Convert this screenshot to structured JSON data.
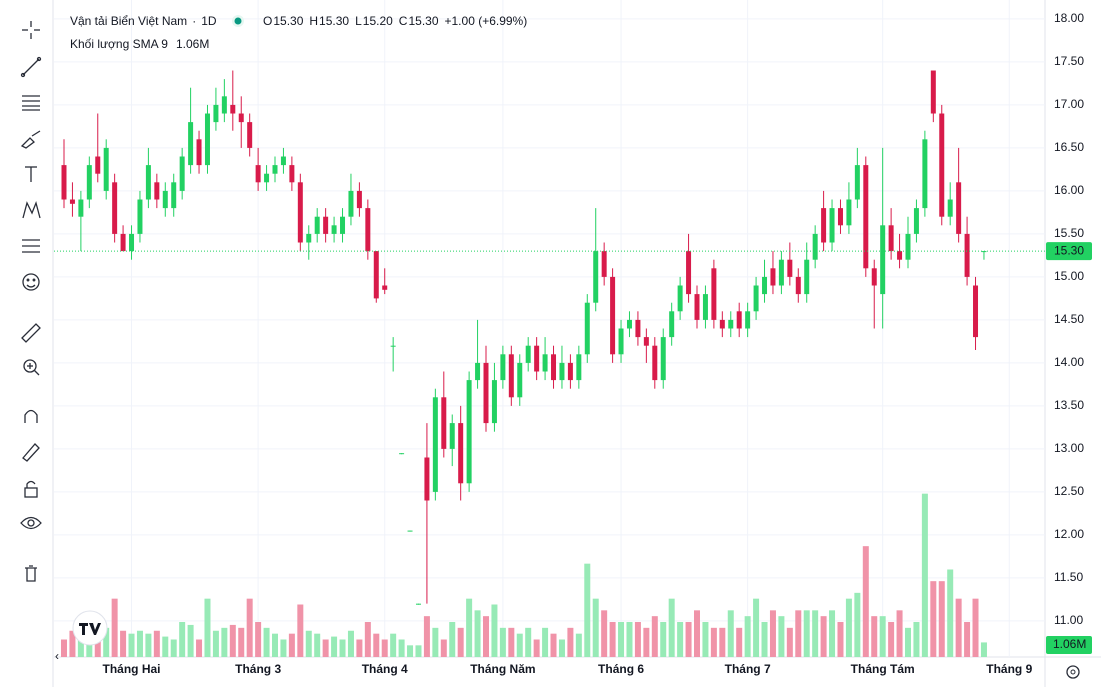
{
  "chart_data": {
    "type": "candlestick",
    "title": "Vận tải Biển Việt Nam",
    "interval": "1D",
    "ohlc_legend": [
      {
        "key": "O",
        "value": "15.30"
      },
      {
        "key": "H",
        "value": "15.30"
      },
      {
        "key": "L",
        "value": "15.20"
      },
      {
        "key": "C",
        "value": "15.30"
      }
    ],
    "change": "+1.00 (+6.99%)",
    "volume_title": "Khối lượng SMA 9",
    "volume_label": "1.06M",
    "up_color": "#22d162",
    "down_color": "#d81b4a",
    "up_volume_color": "#97eab6",
    "down_volume_color": "#f093a8",
    "ylim": [
      10.58,
      18.22
    ],
    "yticks": [
      {
        "value": 11,
        "label": "11.00"
      },
      {
        "value": 11.5,
        "label": "11.50"
      },
      {
        "value": 12,
        "label": "12.00"
      },
      {
        "value": 12.5,
        "label": "12.50"
      },
      {
        "value": 13,
        "label": "13.00"
      },
      {
        "value": 13.5,
        "label": "13.50"
      },
      {
        "value": 14,
        "label": "14.00"
      },
      {
        "value": 14.5,
        "label": "14.50"
      },
      {
        "value": 15,
        "label": "15.00"
      },
      {
        "value": 15.5,
        "label": "15.50"
      },
      {
        "value": 16,
        "label": "16.00"
      },
      {
        "value": 16.5,
        "label": "16.50"
      },
      {
        "value": 17,
        "label": "17.00"
      },
      {
        "value": 17.5,
        "label": "17.50"
      },
      {
        "value": 18,
        "label": "18.00"
      }
    ],
    "volume_ylim": [
      0,
      3
    ],
    "grid": true,
    "categories": [
      null,
      null,
      null,
      null,
      null,
      null,
      null,
      null,
      "Tháng Hai",
      null,
      null,
      null,
      null,
      null,
      null,
      null,
      null,
      null,
      null,
      null,
      null,
      null,
      null,
      "Tháng 3",
      null,
      null,
      null,
      null,
      null,
      null,
      null,
      null,
      null,
      null,
      null,
      null,
      null,
      null,
      "Tháng 4",
      null,
      null,
      null,
      null,
      null,
      null,
      null,
      null,
      null,
      null,
      null,
      null,
      null,
      "Tháng Năm",
      null,
      null,
      null,
      null,
      null,
      null,
      null,
      null,
      null,
      null,
      null,
      null,
      null,
      "Tháng 6",
      null,
      null,
      null,
      null,
      null,
      null,
      null,
      null,
      null,
      null,
      null,
      null,
      null,
      null,
      "Tháng 7",
      null,
      null,
      null,
      null,
      null,
      null,
      null,
      null,
      null,
      null,
      null,
      null,
      null,
      null,
      null,
      "Tháng Tám",
      null,
      null,
      null,
      null,
      null,
      null,
      null,
      null,
      null,
      null,
      null,
      null,
      null,
      null,
      "Tháng 9"
    ],
    "open": [
      16.3,
      15.9,
      15.7,
      15.9,
      16.4,
      16.0,
      16.1,
      15.5,
      15.3,
      15.5,
      15.9,
      16.1,
      15.8,
      15.8,
      16.0,
      16.3,
      16.6,
      16.3,
      16.8,
      16.9,
      17.0,
      16.9,
      16.8,
      16.3,
      16.1,
      16.2,
      16.3,
      16.3,
      16.1,
      15.4,
      15.5,
      15.7,
      15.5,
      15.5,
      15.7,
      16.0,
      15.8,
      15.3,
      14.9,
      14.2,
      12.95,
      12.05,
      11.2,
      12.9,
      12.5,
      13.6,
      13.0,
      13.3,
      12.6,
      13.8,
      14.0,
      13.3,
      13.8,
      14.1,
      13.6,
      14.0,
      14.2,
      13.9,
      14.1,
      13.8,
      14.0,
      13.8,
      14.1,
      14.7,
      15.3,
      15.0,
      14.1,
      14.4,
      14.5,
      14.3,
      14.2,
      13.8,
      14.3,
      14.6,
      15.3,
      14.8,
      14.5,
      15.1,
      14.5,
      14.4,
      14.6,
      14.4,
      14.6,
      14.8,
      15.1,
      14.9,
      15.2,
      15.0,
      14.8,
      15.2,
      15.8,
      15.4,
      15.8,
      15.6,
      15.9,
      16.3,
      15.1,
      14.8,
      15.6,
      15.3,
      15.2,
      15.5,
      15.8,
      17.4,
      16.9,
      15.7,
      16.1,
      15.5,
      14.9,
      15.3,
      null,
      null,
      null
    ],
    "high": [
      16.6,
      16.1,
      16.0,
      16.4,
      16.9,
      16.6,
      16.2,
      15.6,
      15.6,
      16.0,
      16.5,
      16.2,
      16.1,
      16.2,
      16.5,
      17.2,
      16.7,
      17.0,
      17.2,
      17.3,
      17.4,
      17.1,
      16.9,
      16.5,
      16.3,
      16.4,
      16.5,
      16.4,
      16.2,
      15.6,
      15.8,
      15.8,
      15.7,
      15.8,
      16.2,
      16.1,
      15.9,
      15.3,
      15.1,
      14.3,
      12.95,
      12.05,
      11.2,
      13.3,
      13.7,
      13.9,
      13.4,
      13.5,
      13.9,
      14.5,
      14.2,
      14.0,
      14.2,
      14.2,
      14.1,
      14.3,
      14.3,
      14.3,
      14.2,
      14.2,
      14.1,
      14.2,
      14.8,
      15.8,
      15.4,
      15.1,
      14.5,
      14.6,
      14.6,
      14.4,
      14.3,
      14.4,
      14.7,
      15.0,
      15.5,
      14.9,
      14.9,
      15.2,
      14.6,
      14.6,
      14.7,
      14.7,
      15.0,
      15.2,
      15.3,
      15.3,
      15.4,
      15.1,
      15.4,
      15.6,
      16.0,
      15.9,
      15.9,
      16.1,
      16.5,
      16.4,
      15.2,
      16.5,
      15.8,
      15.5,
      15.7,
      15.9,
      16.7,
      17.4,
      17.0,
      16.1,
      16.5,
      15.7,
      15.0,
      15.3,
      null,
      null,
      null
    ],
    "low": [
      15.8,
      15.7,
      15.3,
      15.8,
      16.1,
      15.9,
      15.4,
      15.3,
      15.2,
      15.4,
      15.8,
      15.8,
      15.7,
      15.7,
      15.9,
      16.2,
      16.2,
      16.2,
      16.7,
      16.8,
      16.7,
      16.5,
      16.4,
      16.0,
      16.0,
      16.1,
      16.2,
      16.0,
      15.3,
      15.2,
      15.4,
      15.4,
      15.4,
      15.4,
      15.6,
      15.7,
      15.2,
      14.7,
      14.8,
      13.9,
      12.95,
      12.05,
      11.2,
      11.2,
      12.4,
      12.9,
      12.8,
      12.4,
      12.5,
      13.7,
      13.2,
      13.2,
      13.7,
      13.5,
      13.5,
      13.9,
      13.8,
      13.8,
      13.7,
      13.7,
      13.7,
      13.7,
      14.0,
      14.6,
      14.9,
      14.0,
      14.0,
      14.3,
      14.2,
      14.0,
      13.7,
      13.7,
      14.2,
      14.5,
      14.7,
      14.4,
      14.4,
      14.4,
      14.3,
      14.3,
      14.3,
      14.3,
      14.5,
      14.7,
      14.8,
      14.8,
      14.9,
      14.7,
      14.7,
      15.1,
      15.3,
      15.3,
      15.5,
      15.5,
      15.8,
      15.0,
      14.4,
      14.4,
      15.2,
      15.1,
      15.1,
      15.4,
      15.7,
      16.8,
      15.6,
      15.6,
      15.4,
      14.9,
      14.15,
      15.2,
      null,
      null,
      null
    ],
    "close": [
      15.9,
      15.85,
      15.9,
      16.3,
      16.2,
      16.5,
      15.5,
      15.3,
      15.5,
      15.9,
      16.3,
      15.9,
      16.0,
      16.1,
      16.4,
      16.8,
      16.3,
      16.9,
      17.0,
      17.1,
      16.9,
      16.8,
      16.5,
      16.1,
      16.2,
      16.3,
      16.4,
      16.1,
      15.4,
      15.5,
      15.7,
      15.5,
      15.6,
      15.7,
      16.0,
      15.8,
      15.3,
      14.75,
      14.85,
      14.2,
      12.95,
      12.05,
      11.2,
      12.4,
      13.6,
      13.0,
      13.3,
      12.6,
      13.8,
      14.0,
      13.3,
      13.8,
      14.1,
      13.6,
      14.0,
      14.2,
      13.9,
      14.1,
      13.8,
      14.0,
      13.8,
      14.1,
      14.7,
      15.3,
      15.0,
      14.1,
      14.4,
      14.5,
      14.3,
      14.2,
      13.8,
      14.3,
      14.6,
      14.9,
      14.8,
      14.5,
      14.8,
      14.5,
      14.4,
      14.5,
      14.4,
      14.6,
      14.9,
      15.0,
      14.9,
      15.2,
      15.0,
      14.8,
      15.2,
      15.5,
      15.4,
      15.8,
      15.6,
      15.9,
      16.3,
      15.1,
      14.9,
      15.6,
      15.3,
      15.2,
      15.5,
      15.8,
      16.6,
      16.9,
      15.7,
      15.9,
      15.5,
      15.0,
      14.3,
      15.3,
      null,
      null,
      null
    ],
    "volume": [
      0.3,
      0.45,
      0.55,
      0.4,
      0.5,
      0.5,
      1.0,
      0.45,
      0.4,
      0.45,
      0.4,
      0.45,
      0.35,
      0.3,
      0.6,
      0.55,
      0.3,
      1.0,
      0.45,
      0.5,
      0.55,
      0.5,
      1.0,
      0.6,
      0.5,
      0.4,
      0.3,
      0.4,
      0.9,
      0.45,
      0.4,
      0.3,
      0.35,
      0.3,
      0.45,
      0.3,
      0.6,
      0.4,
      0.3,
      0.4,
      0.3,
      0.2,
      0.2,
      0.7,
      0.5,
      0.3,
      0.6,
      0.5,
      1.0,
      0.8,
      0.7,
      0.9,
      0.5,
      0.5,
      0.4,
      0.5,
      0.3,
      0.5,
      0.4,
      0.3,
      0.5,
      0.4,
      1.6,
      1.0,
      0.8,
      0.6,
      0.6,
      0.6,
      0.6,
      0.5,
      0.7,
      0.6,
      1.0,
      0.6,
      0.6,
      0.8,
      0.6,
      0.5,
      0.5,
      0.8,
      0.5,
      0.7,
      1.0,
      0.6,
      0.8,
      0.7,
      0.5,
      0.8,
      0.8,
      0.8,
      0.7,
      0.8,
      0.6,
      1.0,
      1.1,
      1.9,
      0.7,
      0.7,
      0.6,
      0.8,
      0.5,
      0.6,
      2.8,
      1.3,
      1.3,
      1.5,
      1.0,
      0.6,
      1.0,
      0.25,
      null,
      null,
      null
    ]
  }
}
